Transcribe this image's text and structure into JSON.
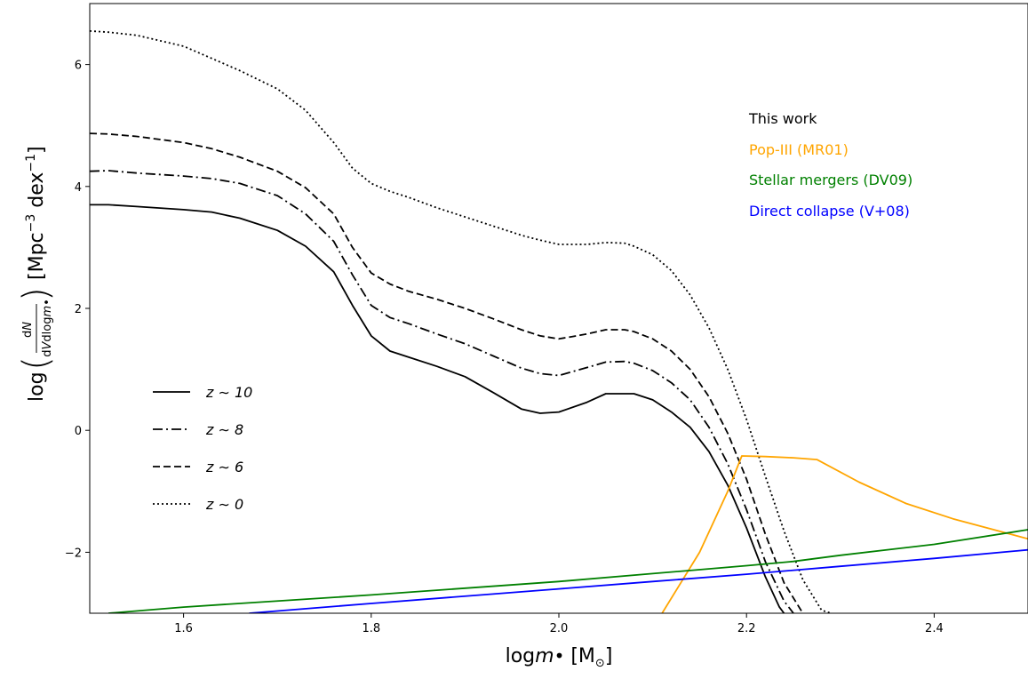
{
  "chart_data": {
    "type": "line",
    "xlabel": "log m• [M⊙]",
    "ylabel": "log(dN / dV dlog m•) [Mpc⁻³ dex⁻¹]",
    "xlim": [
      1.5,
      2.5
    ],
    "ylim": [
      -3,
      7
    ],
    "xticks": [
      1.6,
      1.8,
      2.0,
      2.2,
      2.4
    ],
    "xtick_labels": [
      "1.6",
      "1.8",
      "2.0",
      "2.2",
      "2.4"
    ],
    "yticks": [
      -2,
      0,
      2,
      4,
      6
    ],
    "ytick_labels": [
      "−2",
      "0",
      "2",
      "4",
      "6"
    ],
    "grid": false,
    "legend_placement": "lower-left",
    "annotation": {
      "placement": "upper-right",
      "lines": [
        {
          "text": "This work",
          "color": "#000000"
        },
        {
          "text": "Pop-III (MR01)",
          "color": "#FFA500"
        },
        {
          "text": "Stellar mergers (DV09)",
          "color": "#008000"
        },
        {
          "text": "Direct collapse (V+08)",
          "color": "#0000FF"
        }
      ]
    },
    "series": [
      {
        "name": "z ∼ 10",
        "color": "#000000",
        "style": "solid",
        "in_legend": true,
        "x": [
          1.5,
          1.52,
          1.55,
          1.6,
          1.63,
          1.66,
          1.7,
          1.73,
          1.76,
          1.78,
          1.8,
          1.82,
          1.84,
          1.87,
          1.9,
          1.93,
          1.96,
          1.98,
          2.0,
          2.03,
          2.05,
          2.07,
          2.08,
          2.1,
          2.12,
          2.14,
          2.16,
          2.18,
          2.2,
          2.22,
          2.235,
          2.24
        ],
        "y": [
          3.7,
          3.7,
          3.67,
          3.62,
          3.58,
          3.48,
          3.28,
          3.02,
          2.6,
          2.05,
          1.55,
          1.3,
          1.2,
          1.05,
          0.88,
          0.62,
          0.35,
          0.28,
          0.3,
          0.46,
          0.6,
          0.6,
          0.6,
          0.5,
          0.3,
          0.05,
          -0.35,
          -0.9,
          -1.6,
          -2.4,
          -2.9,
          -3.0
        ]
      },
      {
        "name": "z ∼ 8",
        "color": "#000000",
        "style": "dashdot",
        "in_legend": true,
        "x": [
          1.5,
          1.52,
          1.55,
          1.6,
          1.63,
          1.66,
          1.7,
          1.73,
          1.76,
          1.78,
          1.8,
          1.82,
          1.84,
          1.87,
          1.9,
          1.93,
          1.96,
          1.98,
          2.0,
          2.03,
          2.05,
          2.07,
          2.08,
          2.1,
          2.12,
          2.14,
          2.16,
          2.18,
          2.2,
          2.22,
          2.24,
          2.25
        ],
        "y": [
          4.25,
          4.26,
          4.22,
          4.17,
          4.13,
          4.05,
          3.85,
          3.55,
          3.1,
          2.55,
          2.05,
          1.85,
          1.75,
          1.58,
          1.42,
          1.22,
          1.02,
          0.93,
          0.9,
          1.03,
          1.12,
          1.13,
          1.1,
          0.98,
          0.78,
          0.5,
          0.05,
          -0.55,
          -1.3,
          -2.15,
          -2.8,
          -3.0
        ]
      },
      {
        "name": "z ∼ 6",
        "color": "#000000",
        "style": "dashed",
        "in_legend": true,
        "x": [
          1.5,
          1.52,
          1.55,
          1.6,
          1.63,
          1.66,
          1.7,
          1.73,
          1.76,
          1.78,
          1.8,
          1.82,
          1.84,
          1.87,
          1.9,
          1.93,
          1.96,
          1.98,
          2.0,
          2.03,
          2.05,
          2.07,
          2.08,
          2.1,
          2.12,
          2.14,
          2.16,
          2.18,
          2.2,
          2.22,
          2.24,
          2.26
        ],
        "y": [
          4.87,
          4.86,
          4.82,
          4.72,
          4.62,
          4.48,
          4.25,
          3.98,
          3.55,
          3.0,
          2.58,
          2.4,
          2.28,
          2.15,
          2.0,
          1.83,
          1.65,
          1.55,
          1.5,
          1.58,
          1.65,
          1.65,
          1.62,
          1.5,
          1.3,
          1.0,
          0.55,
          -0.05,
          -0.8,
          -1.7,
          -2.5,
          -3.0
        ]
      },
      {
        "name": "z ∼ 0",
        "color": "#000000",
        "style": "dotted",
        "in_legend": true,
        "x": [
          1.5,
          1.52,
          1.55,
          1.6,
          1.63,
          1.66,
          1.7,
          1.73,
          1.76,
          1.78,
          1.8,
          1.82,
          1.84,
          1.87,
          1.9,
          1.93,
          1.96,
          1.98,
          2.0,
          2.03,
          2.05,
          2.07,
          2.08,
          2.1,
          2.12,
          2.14,
          2.16,
          2.18,
          2.2,
          2.22,
          2.24,
          2.26,
          2.28,
          2.29
        ],
        "y": [
          6.55,
          6.53,
          6.48,
          6.3,
          6.1,
          5.9,
          5.6,
          5.25,
          4.72,
          4.3,
          4.05,
          3.92,
          3.82,
          3.65,
          3.5,
          3.35,
          3.2,
          3.12,
          3.05,
          3.05,
          3.08,
          3.07,
          3.02,
          2.88,
          2.62,
          2.22,
          1.68,
          1.0,
          0.18,
          -0.75,
          -1.65,
          -2.45,
          -2.95,
          -3.0
        ]
      },
      {
        "name": "",
        "color": "#FFA500",
        "style": "solid",
        "in_legend": false,
        "x": [
          2.11,
          2.15,
          2.18,
          2.195,
          2.22,
          2.25,
          2.275,
          2.32,
          2.37,
          2.42,
          2.5
        ],
        "y": [
          -3.0,
          -2.0,
          -1.0,
          -0.42,
          -0.43,
          -0.45,
          -0.48,
          -0.85,
          -1.2,
          -1.45,
          -1.78
        ]
      },
      {
        "name": "",
        "color": "#008000",
        "style": "solid",
        "in_legend": false,
        "x": [
          1.52,
          1.6,
          1.8,
          2.0,
          2.1,
          2.2,
          2.25,
          2.3,
          2.4,
          2.5
        ],
        "y": [
          -3.0,
          -2.9,
          -2.7,
          -2.48,
          -2.35,
          -2.22,
          -2.15,
          -2.05,
          -1.87,
          -1.63
        ]
      },
      {
        "name": "",
        "color": "#0000FF",
        "style": "solid",
        "in_legend": false,
        "x": [
          1.67,
          1.8,
          2.0,
          2.1,
          2.2,
          2.3,
          2.4,
          2.5
        ],
        "y": [
          -3.0,
          -2.84,
          -2.6,
          -2.48,
          -2.36,
          -2.23,
          -2.1,
          -1.96
        ]
      }
    ]
  }
}
